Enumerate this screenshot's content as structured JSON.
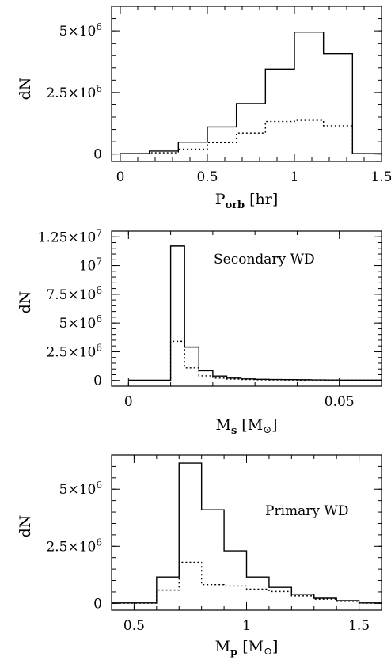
{
  "chart_data": [
    {
      "type": "histogram",
      "xlabel": "P",
      "xlabel_sub": "orb",
      "xlabel_unit": "[hr]",
      "ylabel": "dN",
      "xlim": [
        -0.05,
        1.5
      ],
      "ylim": [
        -300000,
        6000000
      ],
      "xticks": [
        0,
        0.5,
        1,
        1.5
      ],
      "xtick_labels": [
        "0",
        "0.5",
        "1",
        "1.5"
      ],
      "yticks": [
        0,
        2500000,
        5000000
      ],
      "ytick_labels": [
        {
          "mantissa": "0",
          "exp": ""
        },
        {
          "mantissa": "2.5×10",
          "exp": "6"
        },
        {
          "mantissa": "5×10",
          "exp": "6"
        }
      ],
      "annotation": "",
      "bin_edges": [
        0,
        0.1667,
        0.3333,
        0.5,
        0.6667,
        0.8333,
        1.0,
        1.1667,
        1.3333,
        1.5
      ],
      "series": [
        {
          "style": "solid",
          "values": [
            20000,
            120000,
            480000,
            1100000,
            2050000,
            3450000,
            4950000,
            4080000,
            20000
          ]
        },
        {
          "style": "dotted",
          "values": [
            10000,
            50000,
            200000,
            460000,
            850000,
            1320000,
            1370000,
            1150000,
            10000
          ]
        }
      ]
    },
    {
      "type": "histogram",
      "xlabel": "M",
      "xlabel_sub": "s",
      "xlabel_unit": "[M",
      "ylabel": "dN",
      "xlim": [
        -0.004,
        0.06
      ],
      "ylim": [
        -500000,
        13000000
      ],
      "xticks": [
        0,
        0.05
      ],
      "xtick_labels": [
        "0",
        "0.05"
      ],
      "yticks": [
        0,
        2500000,
        5000000,
        7500000,
        10000000,
        12500000
      ],
      "ytick_labels": [
        {
          "mantissa": "0",
          "exp": ""
        },
        {
          "mantissa": "2.5×10",
          "exp": "6"
        },
        {
          "mantissa": "5×10",
          "exp": "6"
        },
        {
          "mantissa": "7.5×10",
          "exp": "6"
        },
        {
          "mantissa": "10",
          "exp": "7"
        },
        {
          "mantissa": "1.25×10",
          "exp": "7"
        }
      ],
      "annotation": "Secondary WD",
      "bin_edges": [
        0,
        0.01,
        0.0133,
        0.0167,
        0.02,
        0.0233,
        0.0267,
        0.03,
        0.0333,
        0.0367,
        0.04,
        0.0433,
        0.0467,
        0.05,
        0.06
      ],
      "series": [
        {
          "style": "solid",
          "values": [
            20000,
            11700000,
            2900000,
            850000,
            380000,
            200000,
            130000,
            100000,
            80000,
            70000,
            60000,
            50000,
            40000,
            30000
          ]
        },
        {
          "style": "dotted",
          "values": [
            10000,
            3400000,
            1100000,
            400000,
            200000,
            120000,
            80000,
            60000,
            50000,
            40000,
            30000,
            30000,
            20000,
            20000
          ]
        }
      ]
    },
    {
      "type": "histogram",
      "xlabel": "M",
      "xlabel_sub": "p",
      "xlabel_unit": "[M",
      "ylabel": "dN",
      "xlim": [
        0.4,
        1.6
      ],
      "ylim": [
        -300000,
        6500000
      ],
      "xticks": [
        0.5,
        1,
        1.5
      ],
      "xtick_labels": [
        "0.5",
        "1",
        "1.5"
      ],
      "yticks": [
        0,
        2500000,
        5000000
      ],
      "ytick_labels": [
        {
          "mantissa": "0",
          "exp": ""
        },
        {
          "mantissa": "2.5×10",
          "exp": "6"
        },
        {
          "mantissa": "5×10",
          "exp": "6"
        }
      ],
      "annotation": "Primary WD",
      "bin_edges": [
        0.4,
        0.6,
        0.7,
        0.8,
        0.9,
        1.0,
        1.1,
        1.2,
        1.3,
        1.4,
        1.5,
        1.6
      ],
      "series": [
        {
          "style": "solid",
          "values": [
            20000,
            1150000,
            6150000,
            4100000,
            2300000,
            1150000,
            700000,
            400000,
            220000,
            120000,
            20000
          ]
        },
        {
          "style": "dotted",
          "values": [
            10000,
            580000,
            1800000,
            820000,
            760000,
            620000,
            520000,
            330000,
            180000,
            90000,
            10000
          ]
        }
      ]
    }
  ]
}
